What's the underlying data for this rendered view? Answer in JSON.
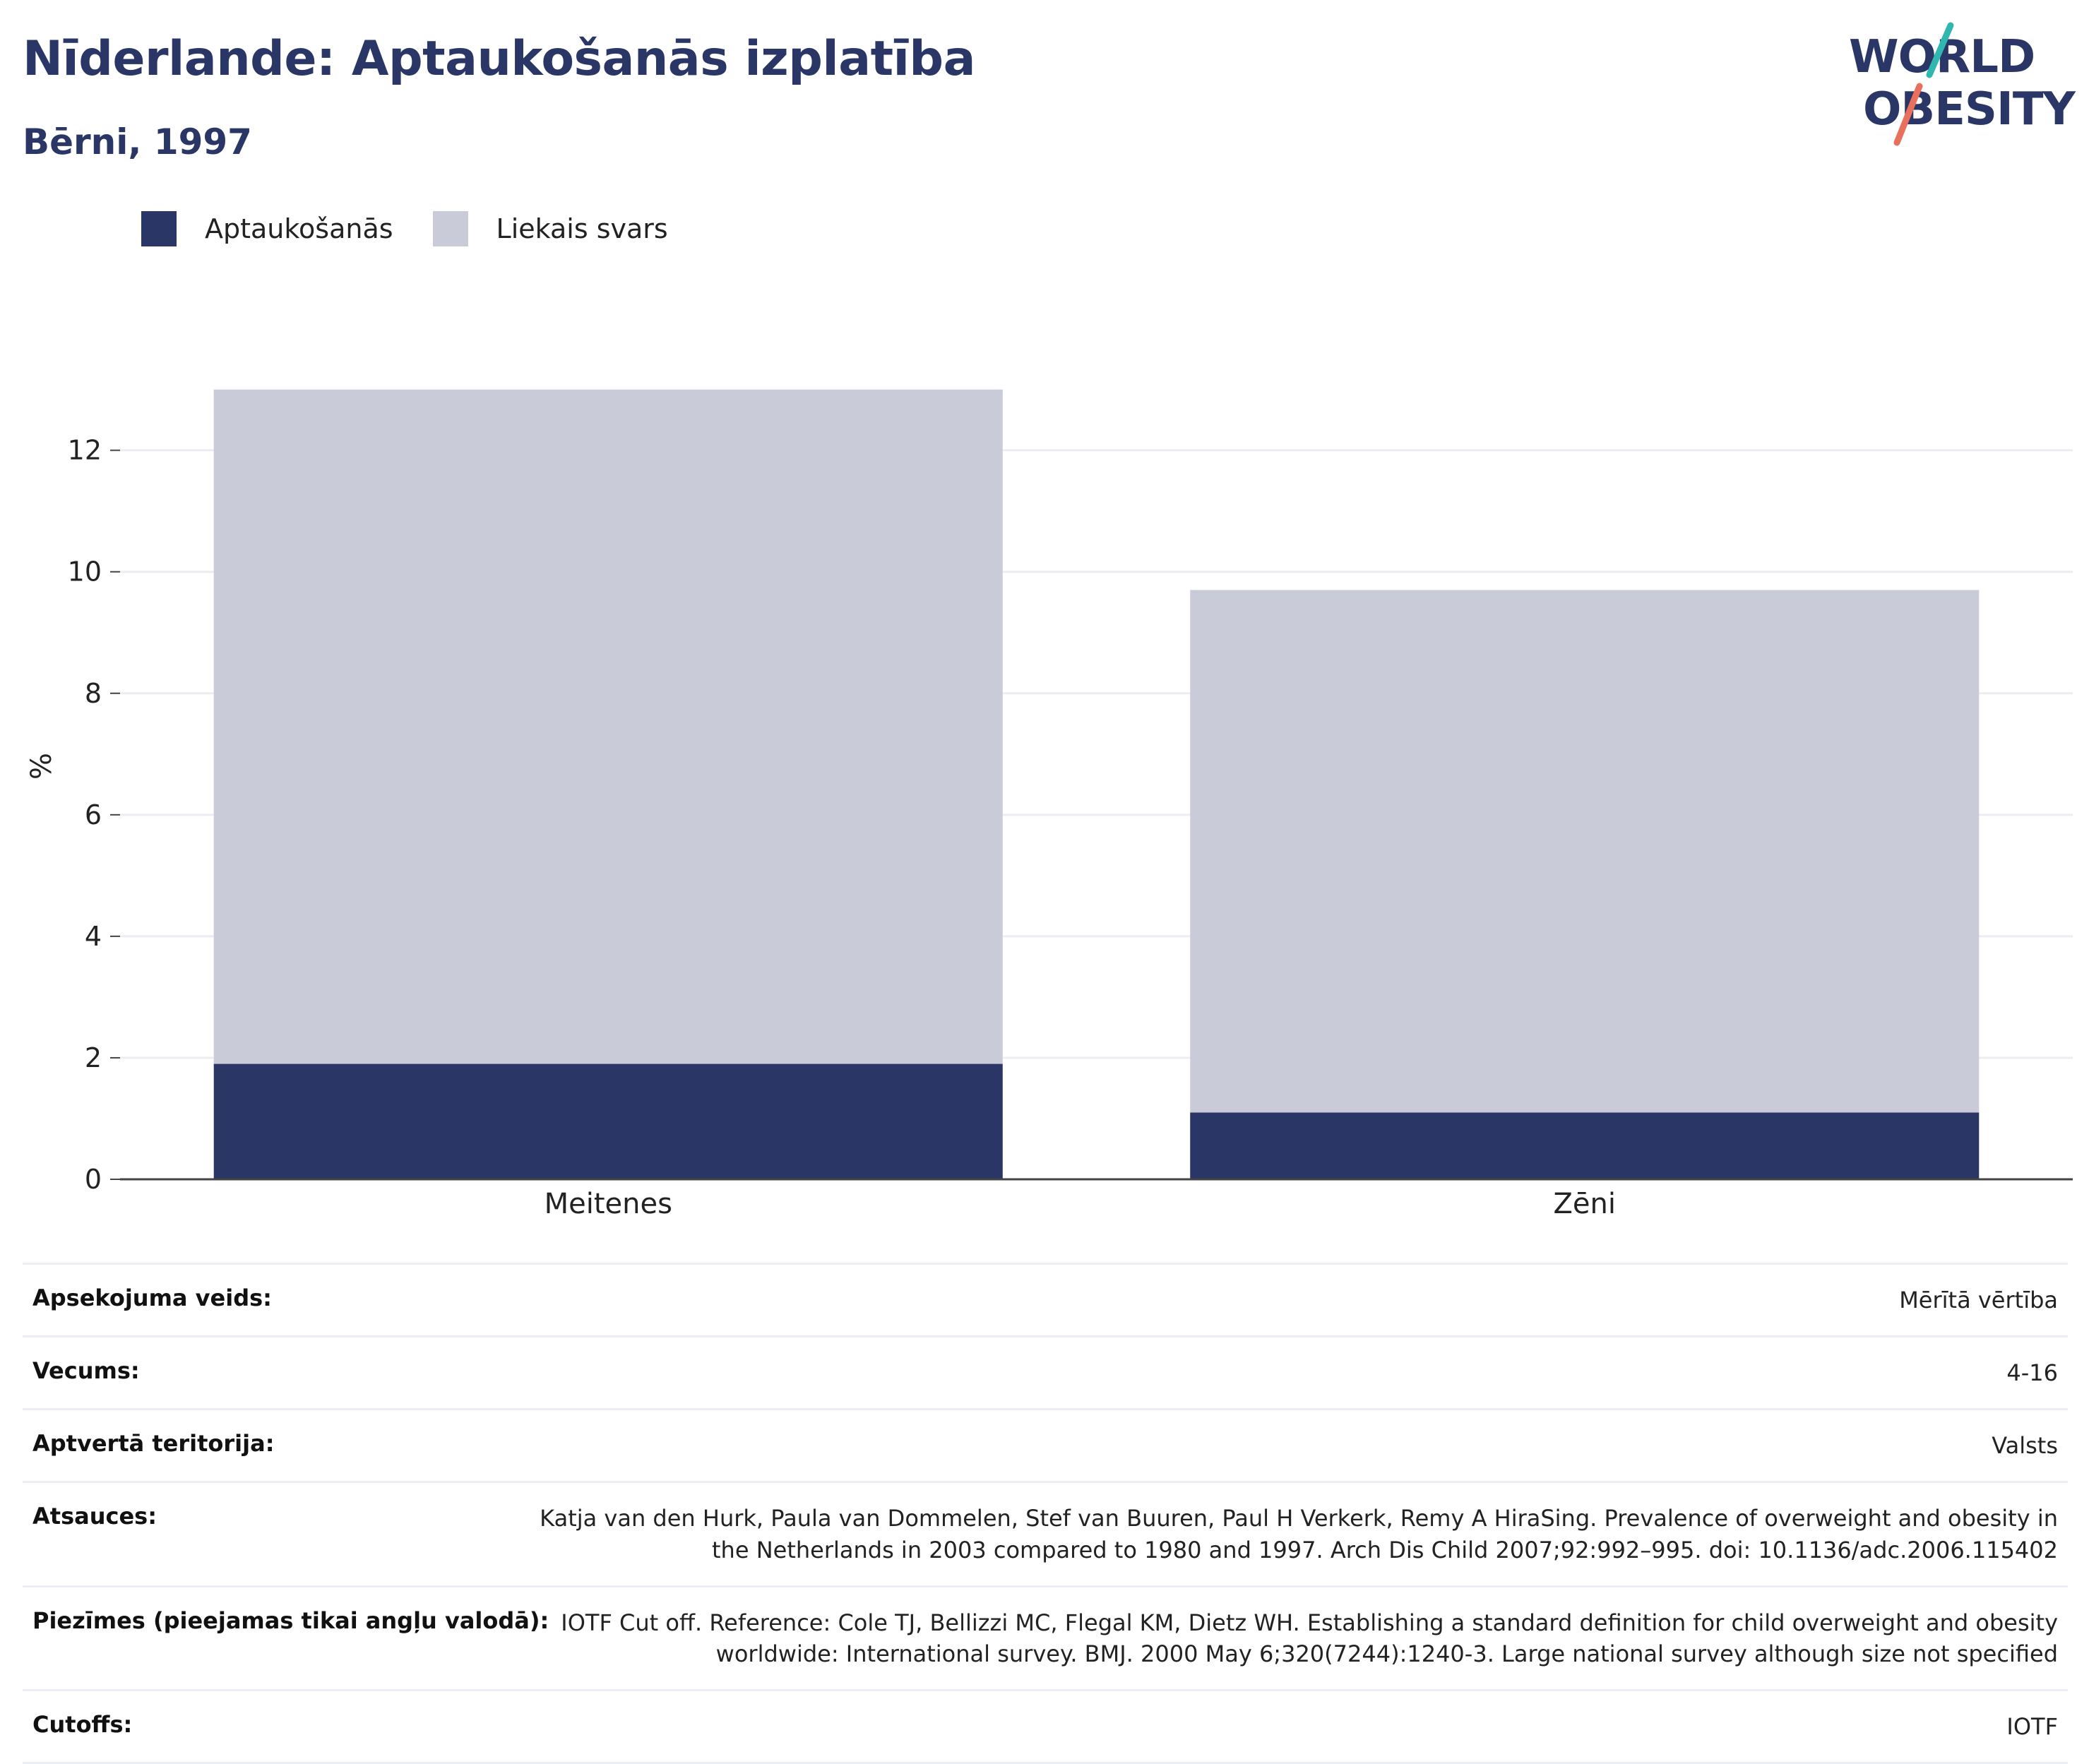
{
  "header": {
    "title": "Nīderlande: Aptaukošanās izplatība",
    "subtitle": "Bērni, 1997"
  },
  "logo": {
    "line1": "WORLD",
    "line2": "OBESITY"
  },
  "colors": {
    "obesity": "#2a3665",
    "overweight": "#c9ccd8",
    "logo_teal": "#2fb7b0",
    "logo_coral": "#e8705d"
  },
  "chart_data": {
    "type": "bar",
    "stacked": true,
    "categories": [
      "Meitenes",
      "Zēni"
    ],
    "series": [
      {
        "name": "Aptaukošanās",
        "values": [
          1.9,
          1.1
        ]
      },
      {
        "name": "Liekais svars",
        "values": [
          11.1,
          8.6
        ]
      }
    ],
    "title": "Nīderlande: Aptaukošanās izplatība",
    "subtitle": "Bērni, 1997",
    "xlabel": "",
    "ylabel": "%",
    "ylim": [
      0,
      13.6
    ],
    "yticks": [
      0,
      2,
      4,
      6,
      8,
      10,
      12
    ],
    "grid": true,
    "legend": "top-left"
  },
  "meta": [
    {
      "label": "Apsekojuma veids:",
      "value": "Mērītā vērtība"
    },
    {
      "label": "Vecums:",
      "value": "4-16"
    },
    {
      "label": "Aptvertā teritorija:",
      "value": "Valsts"
    },
    {
      "label": "Atsauces:",
      "value": "Katja van den Hurk, Paula van Dommelen, Stef van Buuren, Paul H Verkerk, Remy A HiraSing. Prevalence of overweight and obesity in the Netherlands in 2003 compared to 1980 and 1997. Arch Dis Child 2007;92:992–995. doi: 10.1136/adc.2006.115402"
    },
    {
      "label": "Piezīmes (pieejamas tikai angļu valodā):",
      "value": "IOTF Cut off. Reference: Cole TJ, Bellizzi MC, Flegal KM, Dietz WH. Establishing a standard definition for child overweight and obesity worldwide: International survey. BMJ. 2000 May 6;320(7244):1240-3. Large national survey although size not specified"
    },
    {
      "label": "Cutoffs:",
      "value": "IOTF"
    }
  ]
}
